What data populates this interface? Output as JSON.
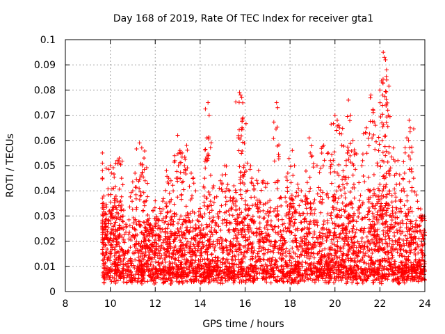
{
  "chart_data": {
    "type": "scatter",
    "title": "Day 168 of 2019, Rate Of TEC Index for receiver gta1",
    "xlabel": "GPS time / hours",
    "ylabel": "ROTI / TECUs",
    "xlim": [
      8,
      24
    ],
    "ylim": [
      0,
      0.1
    ],
    "xticks": [
      "8",
      "10",
      "12",
      "14",
      "16",
      "18",
      "20",
      "22",
      "24"
    ],
    "yticks": [
      "0",
      "0.01",
      "0.02",
      "0.03",
      "0.04",
      "0.05",
      "0.06",
      "0.07",
      "0.08",
      "0.09",
      "0.1"
    ],
    "grid": true,
    "marker": "plus",
    "series": [
      {
        "color": "#ff0000",
        "x_range": [
          9.65,
          24.0
        ],
        "points": [
          [
            9.65,
            0.055
          ],
          [
            9.65,
            0.051
          ],
          [
            9.7,
            0.034
          ],
          [
            9.8,
            0.026
          ],
          [
            10.0,
            0.05
          ],
          [
            10.05,
            0.047
          ],
          [
            10.15,
            0.041
          ],
          [
            10.2,
            0.034
          ],
          [
            10.3,
            0.052
          ],
          [
            10.4,
            0.053
          ],
          [
            10.5,
            0.045
          ],
          [
            11.0,
            0.04
          ],
          [
            11.1,
            0.047
          ],
          [
            11.3,
            0.059
          ],
          [
            11.4,
            0.057
          ],
          [
            11.5,
            0.053
          ],
          [
            11.55,
            0.044
          ],
          [
            11.6,
            0.036
          ],
          [
            11.9,
            0.032
          ],
          [
            12.0,
            0.036
          ],
          [
            12.2,
            0.033
          ],
          [
            12.5,
            0.048
          ],
          [
            12.6,
            0.045
          ],
          [
            12.7,
            0.044
          ],
          [
            12.8,
            0.04
          ],
          [
            13.0,
            0.062
          ],
          [
            13.1,
            0.056
          ],
          [
            13.2,
            0.055
          ],
          [
            13.3,
            0.05
          ],
          [
            13.4,
            0.058
          ],
          [
            13.6,
            0.047
          ],
          [
            13.8,
            0.04
          ],
          [
            14.0,
            0.033
          ],
          [
            14.2,
            0.045
          ],
          [
            14.3,
            0.061
          ],
          [
            14.35,
            0.075
          ],
          [
            14.4,
            0.07
          ],
          [
            14.6,
            0.042
          ],
          [
            14.9,
            0.044
          ],
          [
            15.1,
            0.05
          ],
          [
            15.3,
            0.04
          ],
          [
            15.5,
            0.042
          ],
          [
            15.7,
            0.061
          ],
          [
            15.75,
            0.079
          ],
          [
            15.8,
            0.078
          ],
          [
            15.85,
            0.077
          ],
          [
            15.9,
            0.069
          ],
          [
            15.95,
            0.05
          ],
          [
            16.1,
            0.051
          ],
          [
            16.3,
            0.045
          ],
          [
            16.6,
            0.048
          ],
          [
            16.8,
            0.044
          ],
          [
            17.0,
            0.043
          ],
          [
            17.4,
            0.075
          ],
          [
            17.45,
            0.073
          ],
          [
            17.6,
            0.034
          ],
          [
            17.9,
            0.047
          ],
          [
            18.1,
            0.056
          ],
          [
            18.2,
            0.05
          ],
          [
            18.5,
            0.04
          ],
          [
            18.8,
            0.035
          ],
          [
            18.85,
            0.061
          ],
          [
            18.9,
            0.055
          ],
          [
            19.2,
            0.05
          ],
          [
            19.5,
            0.058
          ],
          [
            19.7,
            0.055
          ],
          [
            19.8,
            0.052
          ],
          [
            20.0,
            0.07
          ],
          [
            20.1,
            0.068
          ],
          [
            20.2,
            0.065
          ],
          [
            20.3,
            0.058
          ],
          [
            20.5,
            0.052
          ],
          [
            20.6,
            0.076
          ],
          [
            20.7,
            0.07
          ],
          [
            20.8,
            0.06
          ],
          [
            20.9,
            0.055
          ],
          [
            21.2,
            0.05
          ],
          [
            21.4,
            0.065
          ],
          [
            21.6,
            0.078
          ],
          [
            21.7,
            0.072
          ],
          [
            21.8,
            0.066
          ],
          [
            21.9,
            0.05
          ],
          [
            22.0,
            0.08
          ],
          [
            22.1,
            0.06
          ],
          [
            22.15,
            0.095
          ],
          [
            22.2,
            0.093
          ],
          [
            22.25,
            0.092
          ],
          [
            22.3,
            0.084
          ],
          [
            22.35,
            0.072
          ],
          [
            22.4,
            0.055
          ],
          [
            22.6,
            0.057
          ],
          [
            22.8,
            0.052
          ],
          [
            23.1,
            0.047
          ],
          [
            23.2,
            0.061
          ],
          [
            23.3,
            0.068
          ],
          [
            23.35,
            0.065
          ],
          [
            23.5,
            0.045
          ],
          [
            23.7,
            0.033
          ],
          [
            23.9,
            0.03
          ]
        ]
      }
    ]
  }
}
